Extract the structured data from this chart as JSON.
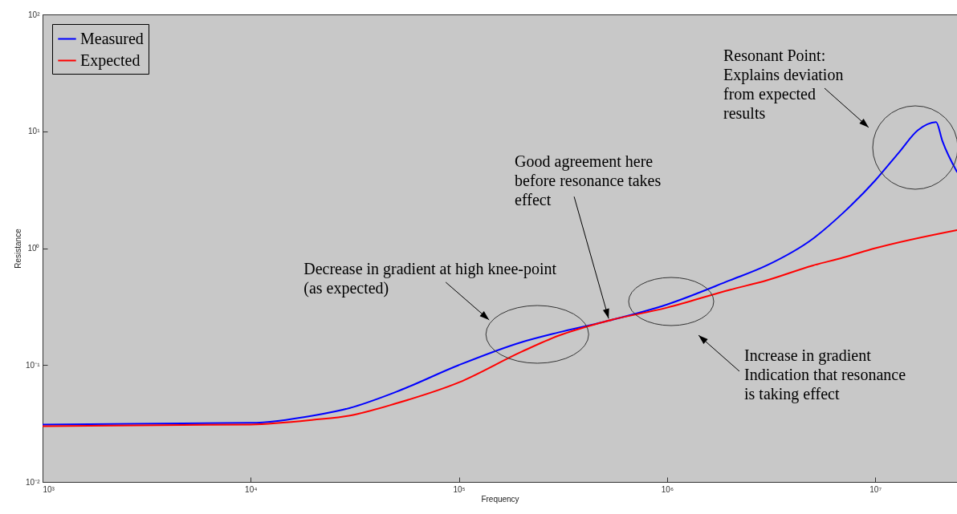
{
  "chart_data": {
    "type": "line",
    "xlabel": "Frequency",
    "ylabel": "Resistance",
    "log": "xy",
    "legend": "top left",
    "grid": false,
    "xlim": [
      1000,
      24700000
    ],
    "xticks": [
      {
        "value": 1000,
        "label": "10³"
      },
      {
        "value": 10000,
        "label": "10⁴"
      },
      {
        "value": 100000,
        "label": "10⁵"
      },
      {
        "value": 1000000,
        "label": "10⁶"
      },
      {
        "value": 10000000,
        "label": "10⁷"
      }
    ],
    "ylim": [
      0.01,
      100
    ],
    "yticks": [
      {
        "value": 0.01,
        "label": "10⁻²"
      },
      {
        "value": 0.1,
        "label": "10⁻¹"
      },
      {
        "value": 1,
        "label": "10⁰"
      },
      {
        "value": 10,
        "label": "10¹"
      },
      {
        "value": 100,
        "label": "10²"
      }
    ],
    "series": [
      {
        "name": "Measured",
        "color": "#0000ff",
        "x": [
          1000,
          10000,
          20000,
          30000,
          50000,
          100000,
          200000,
          300000,
          500000,
          1000000,
          2000000,
          3000000,
          5000000,
          7000000,
          10000000,
          13000000,
          16000000,
          19600000,
          21000000,
          24700000
        ],
        "values": [
          0.031,
          0.032,
          0.037,
          0.043,
          0.059,
          0.1,
          0.157,
          0.19,
          0.235,
          0.33,
          0.53,
          0.71,
          1.2,
          2.0,
          3.8,
          6.6,
          10.2,
          12,
          8.3,
          4.5
        ]
      },
      {
        "name": "Expected",
        "color": "#ff0000",
        "x": [
          1000,
          10000,
          20000,
          30000,
          50000,
          100000,
          200000,
          300000,
          500000,
          1000000,
          2000000,
          3000000,
          5000000,
          7000000,
          10000000,
          24700000
        ],
        "values": [
          0.03,
          0.031,
          0.034,
          0.037,
          0.047,
          0.071,
          0.13,
          0.178,
          0.235,
          0.31,
          0.44,
          0.53,
          0.71,
          0.83,
          1.0,
          1.43
        ]
      }
    ],
    "annotations": [
      {
        "text": "Decrease in gradient at high knee-point\n(as expected)",
        "x": 238000,
        "y": 0.183
      },
      {
        "text": "Good agreement here\nbefore resonance takes\neffect",
        "x": 524000,
        "y": 0.25
      },
      "Increase in gradient\nIndication that resonance\nis taking effect",
      "Resonant Point:\nExplains deviation\nfrom expected\nresults"
    ]
  }
}
